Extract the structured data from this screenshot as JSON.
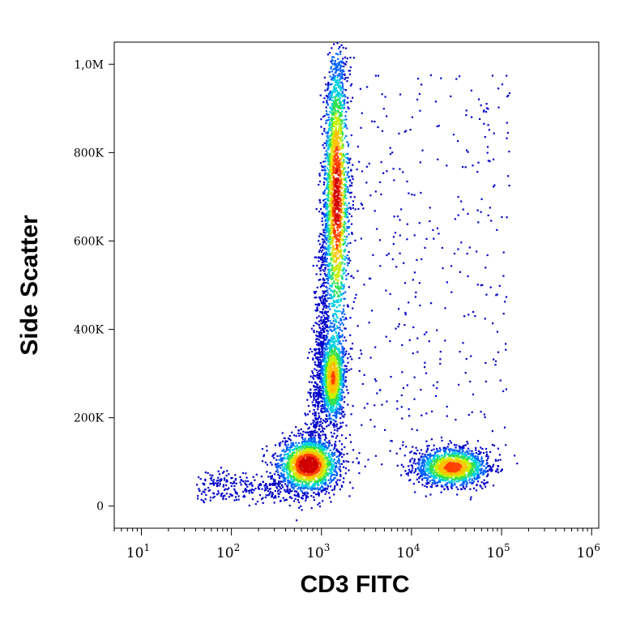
{
  "chart_data": {
    "type": "scatter",
    "subtype": "flow-cytometry-density-plot",
    "xlabel": "CD3 FITC",
    "ylabel": "Side Scatter",
    "x_scale": "log",
    "x_range": [
      5,
      1200000
    ],
    "y_range": [
      -50000,
      1050000
    ],
    "x_ticks": [
      {
        "value": 10,
        "base": "10",
        "exp": "1"
      },
      {
        "value": 100,
        "base": "10",
        "exp": "2"
      },
      {
        "value": 1000,
        "base": "10",
        "exp": "3"
      },
      {
        "value": 10000,
        "base": "10",
        "exp": "4"
      },
      {
        "value": 100000,
        "base": "10",
        "exp": "5"
      },
      {
        "value": 1000000,
        "base": "10",
        "exp": "6"
      }
    ],
    "y_ticks": [
      {
        "value": 0,
        "label": "0"
      },
      {
        "value": 200000,
        "label": "200K"
      },
      {
        "value": 400000,
        "label": "400K"
      },
      {
        "value": 600000,
        "label": "600K"
      },
      {
        "value": 800000,
        "label": "800K"
      },
      {
        "value": 1000000,
        "label": "1,0M"
      }
    ],
    "populations": [
      {
        "center_x": 700,
        "center_y": 95000,
        "spread_log10_x": 0.17,
        "spread_y": 30000,
        "relative_density": 1.0
      },
      {
        "center_x": 1300,
        "center_y": 290000,
        "spread_log10_x": 0.07,
        "spread_y": 50000,
        "relative_density": 0.7
      },
      {
        "center_x": 1450,
        "center_y": 700000,
        "spread_log10_x": 0.07,
        "spread_y": 170000,
        "relative_density": 0.9
      },
      {
        "center_x": 28000,
        "center_y": 90000,
        "spread_log10_x": 0.2,
        "spread_y": 22000,
        "relative_density": 0.8
      }
    ],
    "color_scale": [
      "#0000c8",
      "#0060ff",
      "#00d0e0",
      "#30e050",
      "#c8f000",
      "#ffc000",
      "#ff4000",
      "#d00000"
    ],
    "grid": false,
    "legend": "none"
  }
}
